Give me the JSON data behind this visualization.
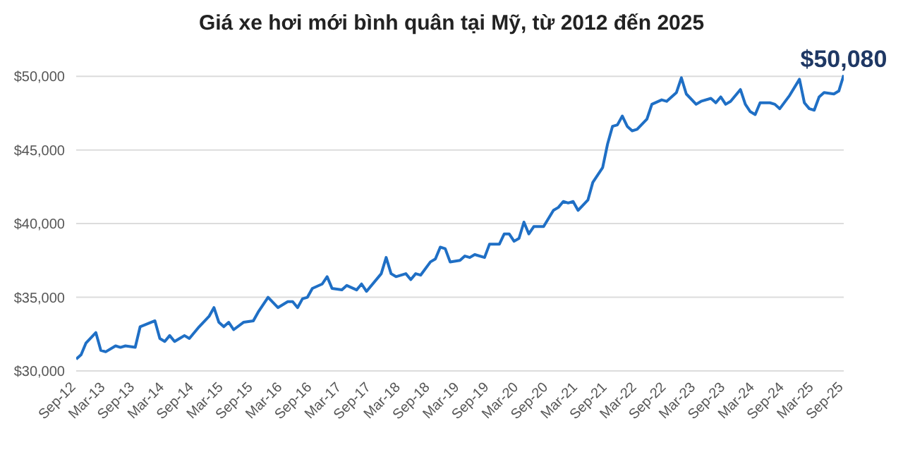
{
  "chart_data": {
    "type": "line",
    "title": "Giá xe hơi mới bình quân tại Mỹ, từ 2012 đến 2025",
    "x": [
      "2012-09",
      "2012-10",
      "2012-11",
      "2013-01",
      "2013-02",
      "2013-03",
      "2013-05",
      "2013-06",
      "2013-07",
      "2013-09",
      "2013-10",
      "2014-01",
      "2014-02",
      "2014-03",
      "2014-04",
      "2014-05",
      "2014-07",
      "2014-08",
      "2014-10",
      "2014-12",
      "2015-01",
      "2015-02",
      "2015-03",
      "2015-04",
      "2015-05",
      "2015-07",
      "2015-09",
      "2015-10",
      "2015-12",
      "2016-02",
      "2016-04",
      "2016-05",
      "2016-06",
      "2016-07",
      "2016-08",
      "2016-09",
      "2016-11",
      "2016-12",
      "2017-01",
      "2017-03",
      "2017-04",
      "2017-06",
      "2017-07",
      "2017-08",
      "2017-11",
      "2017-12",
      "2018-01",
      "2018-02",
      "2018-04",
      "2018-05",
      "2018-06",
      "2018-07",
      "2018-09",
      "2018-10",
      "2018-11",
      "2018-12",
      "2019-01",
      "2019-03",
      "2019-04",
      "2019-05",
      "2019-06",
      "2019-08",
      "2019-09",
      "2019-11",
      "2019-12",
      "2020-01",
      "2020-02",
      "2020-03",
      "2020-04",
      "2020-05",
      "2020-06",
      "2020-08",
      "2020-10",
      "2020-11",
      "2020-12",
      "2021-01",
      "2021-02",
      "2021-03",
      "2021-05",
      "2021-06",
      "2021-08",
      "2021-09",
      "2021-10",
      "2021-11",
      "2021-12",
      "2022-01",
      "2022-02",
      "2022-03",
      "2022-05",
      "2022-06",
      "2022-08",
      "2022-09",
      "2022-10",
      "2022-11",
      "2022-12",
      "2023-01",
      "2023-03",
      "2023-04",
      "2023-06",
      "2023-07",
      "2023-08",
      "2023-09",
      "2023-10",
      "2023-12",
      "2024-01",
      "2024-02",
      "2024-03",
      "2024-04",
      "2024-06",
      "2024-07",
      "2024-08",
      "2024-10",
      "2024-12",
      "2025-01",
      "2025-02",
      "2025-03",
      "2025-04",
      "2025-05",
      "2025-07",
      "2025-08",
      "2025-09"
    ],
    "values": [
      30800,
      31100,
      31900,
      32600,
      31400,
      31300,
      31700,
      31600,
      31700,
      31600,
      33000,
      33400,
      32200,
      32000,
      32400,
      32000,
      32400,
      32200,
      33000,
      33700,
      34300,
      33300,
      33000,
      33300,
      32800,
      33300,
      33400,
      34000,
      35000,
      34300,
      34700,
      34700,
      34300,
      34900,
      35000,
      35600,
      35900,
      36400,
      35600,
      35500,
      35800,
      35500,
      35900,
      35400,
      36600,
      37700,
      36600,
      36400,
      36600,
      36200,
      36600,
      36500,
      37400,
      37600,
      38400,
      38300,
      37400,
      37500,
      37800,
      37700,
      37900,
      37700,
      38600,
      38600,
      39300,
      39300,
      38800,
      39000,
      40100,
      39300,
      39800,
      39800,
      40900,
      41100,
      41500,
      41400,
      41500,
      40900,
      41600,
      42800,
      43800,
      45400,
      46600,
      46700,
      47300,
      46600,
      46300,
      46400,
      47100,
      48100,
      48400,
      48300,
      48600,
      48900,
      49900,
      48800,
      48100,
      48300,
      48500,
      48200,
      48600,
      48100,
      48300,
      49100,
      48100,
      47600,
      47400,
      48200,
      48200,
      48100,
      47800,
      48700,
      49800,
      48200,
      47800,
      47700,
      48600,
      48900,
      48800,
      49000,
      50080
    ],
    "color": "#1f6fc5",
    "xlim": [
      "2012-09",
      "2025-09"
    ],
    "xticks": [
      {
        "value": "2012-09",
        "label": "Sep-12"
      },
      {
        "value": "2013-03",
        "label": "Mar-13"
      },
      {
        "value": "2013-09",
        "label": "Sep-13"
      },
      {
        "value": "2014-03",
        "label": "Mar-14"
      },
      {
        "value": "2014-09",
        "label": "Sep-14"
      },
      {
        "value": "2015-03",
        "label": "Mar-15"
      },
      {
        "value": "2015-09",
        "label": "Sep-15"
      },
      {
        "value": "2016-03",
        "label": "Mar-16"
      },
      {
        "value": "2016-09",
        "label": "Sep-16"
      },
      {
        "value": "2017-03",
        "label": "Mar-17"
      },
      {
        "value": "2017-09",
        "label": "Sep-17"
      },
      {
        "value": "2018-03",
        "label": "Mar-18"
      },
      {
        "value": "2018-09",
        "label": "Sep-18"
      },
      {
        "value": "2019-03",
        "label": "Mar-19"
      },
      {
        "value": "2019-09",
        "label": "Sep-19"
      },
      {
        "value": "2020-03",
        "label": "Mar-20"
      },
      {
        "value": "2020-09",
        "label": "Sep-20"
      },
      {
        "value": "2021-03",
        "label": "Mar-21"
      },
      {
        "value": "2021-09",
        "label": "Sep-21"
      },
      {
        "value": "2022-03",
        "label": "Mar-22"
      },
      {
        "value": "2022-09",
        "label": "Sep-22"
      },
      {
        "value": "2023-03",
        "label": "Mar-23"
      },
      {
        "value": "2023-09",
        "label": "Sep-23"
      },
      {
        "value": "2024-03",
        "label": "Mar-24"
      },
      {
        "value": "2024-09",
        "label": "Sep-24"
      },
      {
        "value": "2025-03",
        "label": "Mar-25"
      },
      {
        "value": "2025-09",
        "label": "Sep-25"
      }
    ],
    "ylim": [
      30000,
      50200
    ],
    "yticks": [
      {
        "value": 30000,
        "label": "$30,000"
      },
      {
        "value": 35000,
        "label": "$35,000"
      },
      {
        "value": 40000,
        "label": "$40,000"
      },
      {
        "value": 45000,
        "label": "$45,000"
      },
      {
        "value": 50000,
        "label": "$50,000"
      }
    ],
    "grid": "y",
    "annotations": [
      {
        "text": "$50,080",
        "x": "2025-09",
        "y": 50080
      }
    ]
  }
}
